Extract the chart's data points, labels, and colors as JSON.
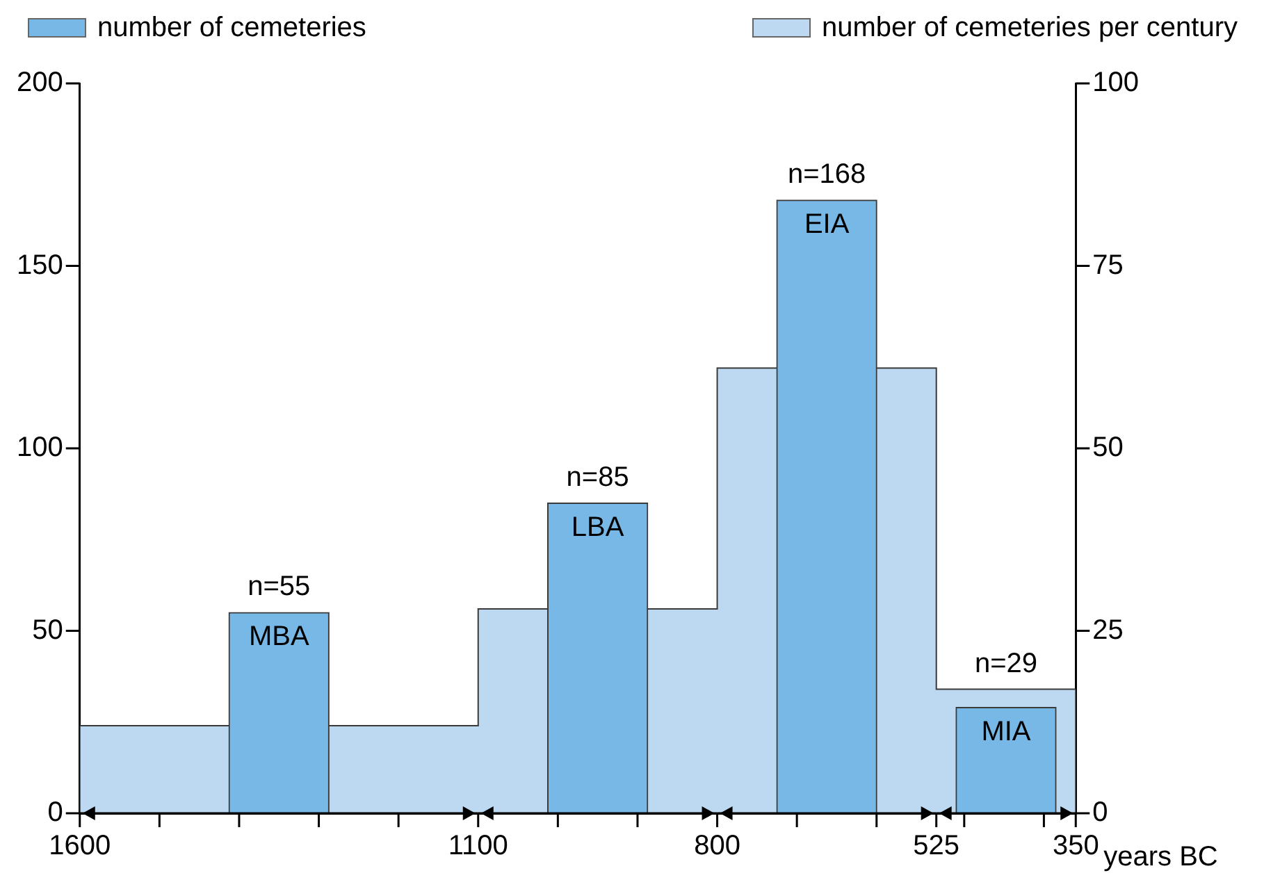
{
  "chart_data": {
    "type": "bar",
    "xlabel": "years BC",
    "xlim": [
      1600,
      350
    ],
    "xticks": [
      1600,
      {
        "value": 1500,
        "label": null
      },
      {
        "value": 1400,
        "label": null
      },
      {
        "value": 1300,
        "label": null
      },
      {
        "value": 1200,
        "label": null
      },
      1100,
      {
        "value": 1000,
        "label": null
      },
      {
        "value": 900,
        "label": null
      },
      800,
      {
        "value": 700,
        "label": null
      },
      {
        "value": 600,
        "label": null
      },
      525,
      {
        "value": 490,
        "label": null
      },
      {
        "value": 390,
        "label": null
      },
      350
    ],
    "ylim": [
      0,
      200
    ],
    "yticks": [
      0,
      50,
      100,
      150,
      200
    ],
    "y2lim": [
      0,
      100
    ],
    "y2ticks": [
      0,
      25,
      50,
      75,
      100
    ],
    "grid": false,
    "legend": "top",
    "series": [
      {
        "name": "number of cemeteries",
        "color": "#78b8e6",
        "x": [
          1350,
          950,
          662.5,
          437.5
        ],
        "values": [
          55,
          85,
          168,
          29
        ],
        "value_labels": [
          "n=55",
          "n=85",
          "n=168",
          "n=29"
        ]
      },
      {
        "name": "number of cemeteries per century",
        "type": "histogram",
        "axis": "y2",
        "color": "#bdd9f1",
        "bins": [
          1600,
          1100,
          800,
          525,
          350
        ],
        "values": [
          12,
          28,
          61,
          17
        ]
      }
    ],
    "annotations": [
      {
        "text": "MBA",
        "x": 1350,
        "y": 55
      },
      {
        "text": "LBA",
        "x": 950,
        "y": 85
      },
      {
        "text": "EIA",
        "x": 662.5,
        "y": 168
      },
      {
        "text": "MIA",
        "x": 437.5,
        "y": 29
      }
    ]
  }
}
